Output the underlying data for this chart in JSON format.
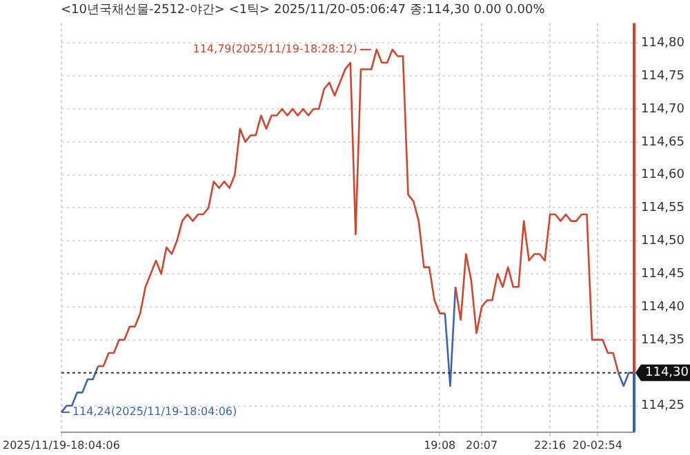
{
  "chart_data": {
    "type": "line",
    "title": "<10년국채선물-2512-야간> <1틱> 2025/11/20-05:06:47 종:114,30 0.00 0.00%",
    "categories": [
      "2025/11/19-18:04:06",
      null,
      null,
      null,
      null,
      null,
      null,
      null,
      null,
      null,
      null,
      null,
      null,
      null,
      null,
      null,
      null,
      null,
      null,
      null,
      null,
      null,
      null,
      null,
      null,
      null,
      null,
      null,
      null,
      null,
      null,
      null,
      null,
      null,
      null,
      null,
      null,
      null,
      null,
      null,
      null,
      null,
      null,
      null,
      null,
      null,
      null,
      null,
      null,
      null,
      null,
      null,
      null,
      null,
      null,
      null,
      null,
      null,
      null,
      null,
      null,
      null,
      null,
      null,
      null,
      null,
      null,
      null,
      null,
      null,
      null,
      null,
      "19:08",
      null,
      null,
      null,
      null,
      null,
      null,
      null,
      "20:07",
      null,
      null,
      null,
      null,
      null,
      null,
      null,
      null,
      null,
      null,
      null,
      null,
      "22:16",
      null,
      null,
      null,
      null,
      null,
      null,
      null,
      null,
      "20-02:54",
      null,
      null,
      null,
      null,
      null,
      null,
      null
    ],
    "series": [
      {
        "color": "#d2442e",
        "values": [
          null,
          null,
          null,
          null,
          null,
          null,
          null,
          114.31,
          114.31,
          114.33,
          114.33,
          114.35,
          114.35,
          114.37,
          114.37,
          114.39,
          114.43,
          114.45,
          114.47,
          114.45,
          114.49,
          114.48,
          114.5,
          114.53,
          114.54,
          114.53,
          114.54,
          114.54,
          114.55,
          114.59,
          114.58,
          114.59,
          114.58,
          114.6,
          114.67,
          114.65,
          114.66,
          114.66,
          114.69,
          114.67,
          114.69,
          114.69,
          114.7,
          114.69,
          114.7,
          114.69,
          114.7,
          114.69,
          114.7,
          114.7,
          114.73,
          114.74,
          114.72,
          114.74,
          114.76,
          114.77,
          114.51,
          114.76,
          114.76,
          114.76,
          114.79,
          114.77,
          114.77,
          114.79,
          114.78,
          114.78,
          114.57,
          114.56,
          114.53,
          114.46,
          114.46,
          114.41,
          114.39,
          114.39,
          null,
          114.43,
          114.38,
          114.48,
          114.44,
          114.36,
          114.4,
          114.41,
          114.41,
          114.45,
          114.43,
          114.46,
          114.43,
          114.43,
          114.53,
          114.47,
          114.48,
          114.48,
          114.47,
          114.54,
          114.54,
          114.53,
          114.54,
          114.53,
          114.53,
          114.54,
          114.54,
          114.35,
          114.35,
          114.35,
          114.33,
          114.33,
          114.3,
          null,
          null,
          null
        ]
      },
      {
        "color": "#3a64b0",
        "values": [
          114.24,
          114.25,
          114.25,
          114.27,
          114.27,
          114.29,
          114.29,
          114.31,
          null,
          null,
          null,
          null,
          null,
          null,
          null,
          null,
          null,
          null,
          null,
          null,
          null,
          null,
          null,
          null,
          null,
          null,
          null,
          null,
          null,
          null,
          null,
          null,
          null,
          null,
          null,
          null,
          null,
          null,
          null,
          null,
          null,
          null,
          null,
          null,
          null,
          null,
          null,
          null,
          null,
          null,
          null,
          null,
          null,
          null,
          null,
          null,
          null,
          null,
          null,
          null,
          null,
          null,
          null,
          null,
          null,
          null,
          null,
          null,
          null,
          null,
          null,
          null,
          null,
          114.39,
          114.28,
          114.43,
          null,
          null,
          null,
          null,
          null,
          null,
          null,
          null,
          null,
          null,
          null,
          null,
          null,
          null,
          null,
          null,
          null,
          null,
          null,
          null,
          null,
          null,
          null,
          null,
          null,
          null,
          null,
          null,
          null,
          null,
          114.3,
          114.28,
          114.3,
          114.3
        ]
      }
    ],
    "ylim": [
      114.21,
      114.83
    ],
    "yticks": [
      {
        "value": 114.25,
        "label": "114,25"
      },
      {
        "value": 114.3,
        "label": null
      },
      {
        "value": 114.35,
        "label": "114,35"
      },
      {
        "value": 114.4,
        "label": "114,40"
      },
      {
        "value": 114.45,
        "label": "114,45"
      },
      {
        "value": 114.5,
        "label": "114,50"
      },
      {
        "value": 114.55,
        "label": "114,55"
      },
      {
        "value": 114.6,
        "label": "114,60"
      },
      {
        "value": 114.65,
        "label": "114,65"
      },
      {
        "value": 114.7,
        "label": "114,70"
      },
      {
        "value": 114.75,
        "label": "114,75"
      },
      {
        "value": 114.8,
        "label": "114,80"
      }
    ],
    "ref_lines": [
      {
        "axis": "y",
        "value": 114.3,
        "label": "114,30",
        "color": "#333333",
        "line_style": "dotted"
      }
    ],
    "annotations": [
      "114,79(2025/11/19-18:28:12)",
      "114,24(2025/11/19-18:04:06)"
    ],
    "grid": true,
    "line_style": "solid",
    "marker": "none",
    "legend": false
  }
}
